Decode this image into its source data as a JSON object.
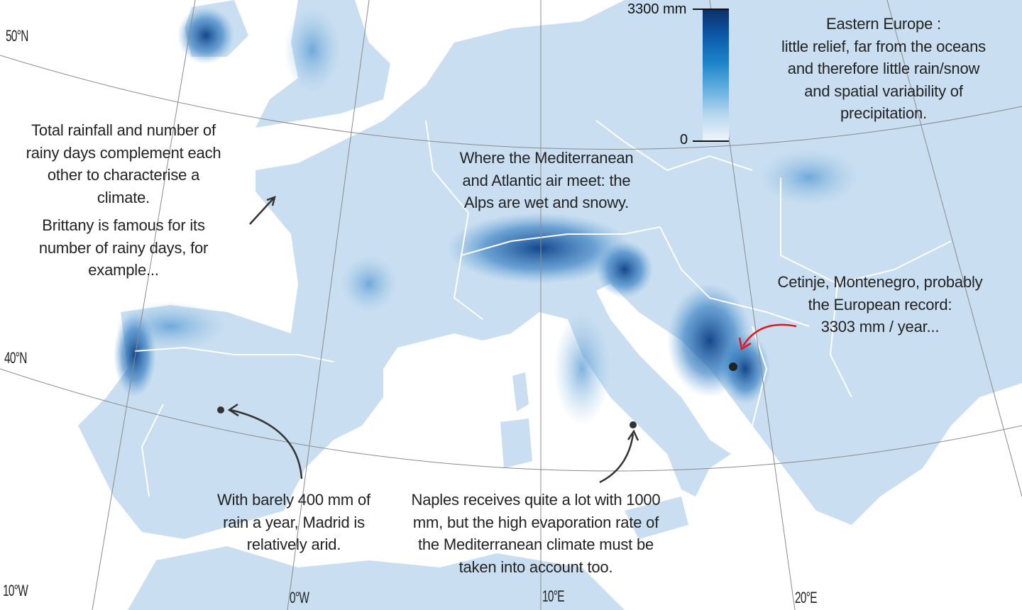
{
  "legend": {
    "max_label": "3300 mm",
    "min_label": "0",
    "colors": [
      "#0d2f66",
      "#0b55a5",
      "#1d83c9",
      "#62aede",
      "#b9d8ef",
      "#f1f5fa"
    ]
  },
  "graticule": {
    "lat_50": "50°N",
    "lat_40": "40°N",
    "lon_w10": "10°W",
    "lon_0": "0°W",
    "lon_e10": "10°E",
    "lon_e20": "20°E"
  },
  "annotations": {
    "eastern_europe": [
      "Eastern Europe :",
      "little relief, far from the oceans",
      "and therefore little rain/snow",
      "and spatial variability of",
      "precipitation."
    ],
    "rainfall_days": [
      "Total rainfall and number of",
      "rainy days complement each",
      "other to characterise a",
      "climate."
    ],
    "brittany": [
      "Brittany is famous for its",
      "number of rainy days, for",
      "example..."
    ],
    "alps": [
      "Where the Mediterranean",
      "and Atlantic air meet: the",
      "Alps are wet and snowy."
    ],
    "cetinje": [
      "Cetinje, Montenegro, probably",
      "the European record:",
      "3303 mm / year..."
    ],
    "madrid": [
      "With barely 400 mm of",
      "rain a year, Madrid is",
      "relatively arid."
    ],
    "naples": [
      "Naples receives quite a lot with 1000",
      "mm, but the high evaporation rate of",
      "the Mediterranean climate must be",
      "taken into account too."
    ]
  },
  "colors": {
    "land": "#c9def0",
    "wet": "#2a77bf",
    "very_wet": "#0b3f85",
    "border": "#ffffff",
    "arrow": "#333333",
    "record_arrow": "#e8141b"
  }
}
